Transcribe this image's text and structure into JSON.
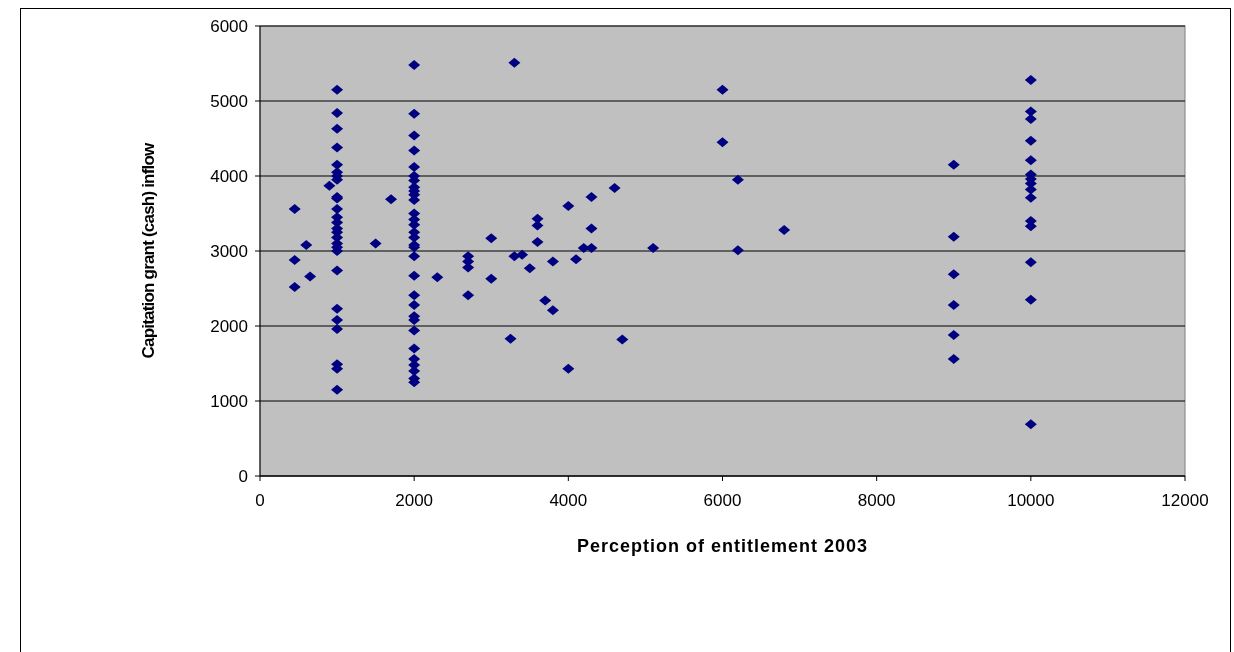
{
  "chart_data": {
    "type": "scatter",
    "xlabel": "Perception of entitlement 2003",
    "ylabel": "Capitation grant (cash) inflow",
    "xlim": [
      0,
      12000
    ],
    "xticks": [
      0,
      2000,
      4000,
      6000,
      8000,
      10000,
      12000
    ],
    "ylim": [
      0,
      6000
    ],
    "yticks": [
      0,
      1000,
      2000,
      3000,
      4000,
      5000,
      6000
    ],
    "grid": "y",
    "marker": "diamond",
    "series": [
      {
        "color": "#000080",
        "x": [
          450,
          450,
          450,
          600,
          650,
          1000,
          1000,
          1000,
          1000,
          1000,
          1000,
          1000,
          1000,
          1000,
          1000,
          1000,
          1000,
          1000,
          1000,
          1000,
          1000,
          1000,
          1000,
          1000,
          1000,
          1000,
          1000,
          1000,
          1000,
          1000,
          1000,
          900,
          1500,
          1700,
          2000,
          2000,
          2000,
          2000,
          2000,
          2000,
          2000,
          2000,
          2000,
          2000,
          2000,
          2000,
          2000,
          2000,
          2000,
          2000,
          2000,
          2000,
          2000,
          2000,
          2000,
          2000,
          2000,
          2000,
          2000,
          2000,
          2000,
          2000,
          2000,
          2000,
          2000,
          2300,
          2700,
          2700,
          2700,
          2700,
          3000,
          3000,
          3250,
          3300,
          3300,
          3400,
          3500,
          3600,
          3600,
          3600,
          3700,
          3800,
          3800,
          4000,
          4000,
          4100,
          4200,
          4300,
          4300,
          4300,
          4600,
          4700,
          5100,
          6000,
          6000,
          6200,
          6200,
          6800,
          9000,
          9000,
          9000,
          9000,
          9000,
          9000,
          10000,
          10000,
          10000,
          10000,
          10000,
          10000,
          10000,
          10000,
          10000,
          10000,
          10000,
          10000,
          10000,
          10000,
          10000
        ],
        "values": [
          3560,
          2880,
          2520,
          3080,
          2660,
          5150,
          4840,
          4630,
          4380,
          4150,
          4050,
          4000,
          3950,
          3720,
          3700,
          3560,
          3450,
          3380,
          3300,
          3250,
          3180,
          3100,
          3050,
          3000,
          2740,
          2230,
          2080,
          1960,
          1490,
          1430,
          1150,
          3870,
          3100,
          3690,
          5480,
          4830,
          4540,
          4340,
          4120,
          4000,
          3940,
          3850,
          3800,
          3750,
          3680,
          3500,
          3420,
          3350,
          3250,
          3180,
          3080,
          3050,
          2930,
          2670,
          2410,
          2280,
          2130,
          2080,
          1940,
          1700,
          1560,
          1480,
          1400,
          1300,
          1250,
          2650,
          2930,
          2860,
          2780,
          2410,
          3170,
          2630,
          1830,
          5510,
          2930,
          2950,
          2770,
          3430,
          3340,
          3120,
          2340,
          2860,
          2210,
          3600,
          1430,
          2890,
          3040,
          3720,
          3300,
          3040,
          3840,
          1820,
          3040,
          5150,
          4450,
          3950,
          3010,
          3280,
          4150,
          3190,
          2690,
          2280,
          1880,
          1560,
          5280,
          4860,
          4760,
          4470,
          4210,
          4020,
          3960,
          3900,
          3820,
          3710,
          3400,
          3330,
          2850,
          2350,
          690
        ]
      }
    ]
  }
}
